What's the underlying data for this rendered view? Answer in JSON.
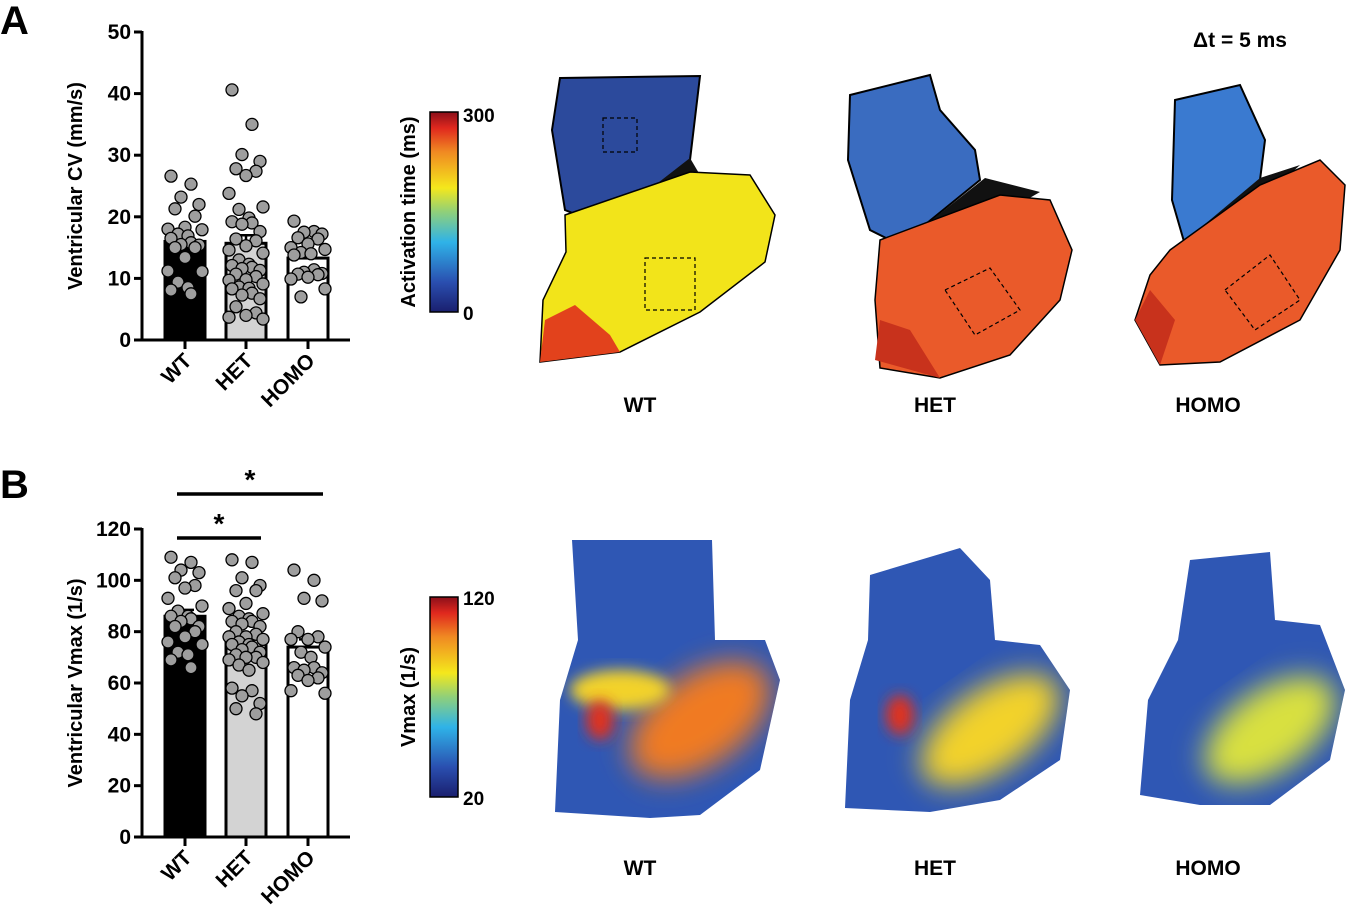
{
  "panels": {
    "a_letter": "A",
    "b_letter": "B"
  },
  "chart_data": [
    {
      "type": "bar",
      "panel": "A",
      "ylabel": "Ventricular CV (mm/s)",
      "categories": [
        "WT",
        "HET",
        "HOMO"
      ],
      "ylim": [
        0,
        50
      ],
      "yticks": [
        "0",
        "10",
        "20",
        "30",
        "40",
        "50"
      ],
      "bar_colors": [
        "#000000",
        "#d3d3d3",
        "#ffffff"
      ],
      "values": [
        16.0,
        15.7,
        13.3
      ],
      "sem": [
        1.0,
        1.3,
        0.8
      ],
      "points": [
        [
          26.6,
          25.3,
          23.2,
          22,
          21.3,
          20.1,
          18.3,
          18,
          17.9,
          17.2,
          16.9,
          16.5,
          15.8,
          15.5,
          15.4,
          15,
          15,
          13.4,
          11.2,
          11.1,
          9.4,
          8.5,
          8.1,
          7.5
        ],
        [
          40.6,
          35,
          30.1,
          29,
          27.8,
          27.4,
          26.7,
          23.8,
          21.6,
          21.2,
          19.8,
          19.2,
          19,
          18.8,
          17.6,
          16.4,
          16.1,
          15.3,
          14.6,
          14.1,
          13,
          12.3,
          12.1,
          11.8,
          11.6,
          11.3,
          10.7,
          10.3,
          9.8,
          9.7,
          9.1,
          8.6,
          8.4,
          8.3,
          7.6,
          7.3,
          6.7,
          5.4,
          4.4,
          4,
          3.7,
          3.4
        ],
        [
          19.3,
          17.6,
          17.5,
          17.2,
          16.6,
          16.4,
          15.6,
          15,
          14.7,
          14.2,
          14,
          13.8,
          11.4,
          11,
          10.8,
          10.7,
          10.6,
          10.2,
          9.9,
          8.3,
          7
        ]
      ]
    },
    {
      "type": "bar",
      "panel": "B",
      "ylabel": "Ventricular Vmax (1/s)",
      "categories": [
        "WT",
        "HET",
        "HOMO"
      ],
      "ylim": [
        0,
        120
      ],
      "yticks": [
        "0",
        "20",
        "40",
        "60",
        "80",
        "100",
        "120"
      ],
      "bar_colors": [
        "#000000",
        "#d3d3d3",
        "#ffffff"
      ],
      "values": [
        86,
        77,
        74
      ],
      "sem": [
        2.5,
        2.2,
        3.0
      ],
      "points": [
        [
          109,
          107,
          104,
          103,
          101,
          98,
          97,
          93,
          90,
          88,
          86,
          86,
          85,
          84,
          82,
          82,
          80,
          78,
          76,
          75,
          72,
          71,
          69,
          66
        ],
        [
          108,
          107,
          101,
          98,
          96,
          96,
          91,
          89,
          87,
          86,
          85,
          84,
          84,
          83,
          82,
          80,
          79,
          78,
          78,
          77,
          76,
          75,
          75,
          74,
          73,
          72,
          71,
          70,
          70,
          69,
          68,
          67,
          65,
          58,
          57,
          55,
          52,
          50,
          48
        ],
        [
          104,
          100,
          93,
          92,
          80,
          78,
          77,
          77,
          74,
          72,
          70,
          66,
          66,
          65,
          64,
          63,
          62,
          61,
          57,
          56
        ]
      ],
      "significance": [
        {
          "from": "WT",
          "to": "HOMO",
          "label": "*"
        },
        {
          "from": "WT",
          "to": "HET",
          "label": "*"
        }
      ]
    }
  ],
  "maps_a": {
    "colorbar_label": "Activation time (ms)",
    "colorbar_max": "300",
    "colorbar_min": "0",
    "delta_t": "Δt = 5 ms",
    "labels": [
      "WT",
      "HET",
      "HOMO"
    ]
  },
  "maps_b": {
    "colorbar_label": "Vmax (1/s)",
    "colorbar_max": "120",
    "colorbar_min": "20",
    "labels": [
      "WT",
      "HET",
      "HOMO"
    ]
  },
  "colors": {
    "point_fill": "#9e9e9e",
    "jet_low": "#1a1f6e",
    "jet_high": "#8b0f1a"
  }
}
